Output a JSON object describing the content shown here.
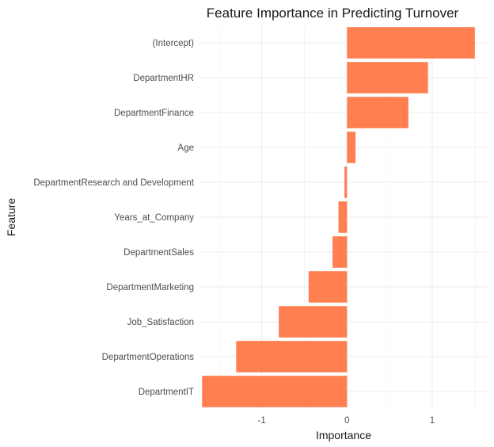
{
  "chart_data": {
    "type": "bar",
    "orientation": "horizontal",
    "title": "Feature Importance in Predicting Turnover",
    "xlabel": "Importance",
    "ylabel": "Feature",
    "categories": [
      "(Intercept)",
      "DepartmentHR",
      "DepartmentFinance",
      "Age",
      "DepartmentResearch and Development",
      "Years_at_Company",
      "DepartmentSales",
      "DepartmentMarketing",
      "Job_Satisfaction",
      "DepartmentOperations",
      "DepartmentIT"
    ],
    "values": [
      1.5,
      0.95,
      0.72,
      0.1,
      -0.03,
      -0.1,
      -0.17,
      -0.45,
      -0.8,
      -1.3,
      -1.7
    ],
    "xlim": [
      -1.73,
      1.65
    ],
    "xticks": [
      -1,
      0,
      1
    ],
    "xtick_labels": [
      "-1",
      "0",
      "1"
    ],
    "grid": true,
    "legend": "none",
    "bar_color": "#FF7F50"
  }
}
